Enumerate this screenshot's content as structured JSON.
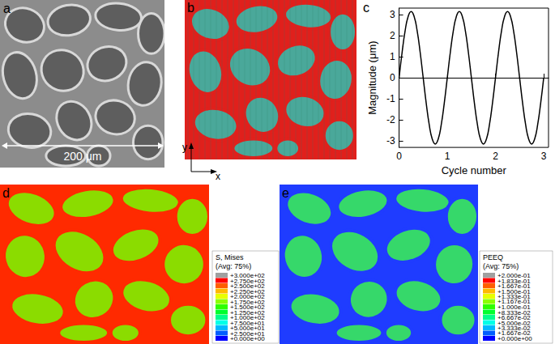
{
  "chart_data": {
    "label": "c",
    "type": "line",
    "x_label": "Cycle number",
    "y_label": "Magnitude (μm)",
    "x": [
      0,
      0.0625,
      0.125,
      0.1875,
      0.25,
      0.3125,
      0.375,
      0.4375,
      0.5,
      0.5625,
      0.625,
      0.6875,
      0.75,
      0.8125,
      0.875,
      0.9375,
      1,
      1.0625,
      1.125,
      1.1875,
      1.25,
      1.3125,
      1.375,
      1.4375,
      1.5,
      1.5625,
      1.625,
      1.6875,
      1.75,
      1.8125,
      1.875,
      1.9375,
      2,
      2.0625,
      2.125,
      2.1875,
      2.25,
      2.3125,
      2.375,
      2.4375,
      2.5,
      2.5625,
      2.625,
      2.6875,
      2.75,
      2.8125,
      2.875,
      2.9375,
      3
    ],
    "values": [
      0,
      1.2,
      2.22,
      2.9,
      3.14,
      2.9,
      2.22,
      1.2,
      0,
      -1.2,
      -2.22,
      -2.9,
      -3.14,
      -2.9,
      -2.22,
      -1.2,
      0,
      1.2,
      2.22,
      2.9,
      3.14,
      2.9,
      2.22,
      1.2,
      0,
      -1.2,
      -2.22,
      -2.9,
      -3.14,
      -2.9,
      -2.22,
      -1.2,
      0,
      1.2,
      2.22,
      2.9,
      3.14,
      2.9,
      2.22,
      1.2,
      0,
      -1.2,
      -2.22,
      -2.9,
      -3.14,
      -2.9,
      -2.22,
      -1.2,
      0
    ],
    "color": "#000000",
    "xlim": [
      0,
      3.1
    ],
    "ylim": [
      -3.3,
      3.3
    ],
    "xticks": [
      0,
      1,
      2,
      3
    ],
    "yticks": [
      -3,
      -2,
      -1,
      0,
      1,
      2,
      3
    ],
    "grid": false
  },
  "panels": {
    "a": {
      "label": "a",
      "scale_bar": "200 μm"
    },
    "b": {
      "label": "b",
      "axes": [
        "x",
        "y"
      ]
    },
    "d": {
      "label": "d",
      "legend": {
        "title": "S, Mises",
        "subtitle": "(Avg: 75%)",
        "ticks": [
          {
            "value": 300,
            "label": "+3.000e+02"
          },
          {
            "value": 275,
            "label": "+2.750e+02"
          },
          {
            "value": 250,
            "label": "+2.500e+02"
          },
          {
            "value": 225,
            "label": "+2.250e+02"
          },
          {
            "value": 200,
            "label": "+2.000e+02"
          },
          {
            "value": 175,
            "label": "+1.750e+02"
          },
          {
            "value": 150,
            "label": "+1.500e+02"
          },
          {
            "value": 125,
            "label": "+1.250e+02"
          },
          {
            "value": 100,
            "label": "+1.000e+02"
          },
          {
            "value": 75,
            "label": "+7.500e+01"
          },
          {
            "value": 50,
            "label": "+5.000e+01"
          },
          {
            "value": 25,
            "label": "+2.500e+01"
          },
          {
            "value": 0,
            "label": "+0.000e+00"
          }
        ]
      }
    },
    "e": {
      "label": "e",
      "legend": {
        "title": "PEEQ",
        "subtitle": "(Avg: 75%)",
        "ticks": [
          {
            "value": 0.2,
            "label": "+2.000e-01"
          },
          {
            "value": 0.1833,
            "label": "+1.833e-01"
          },
          {
            "value": 0.1667,
            "label": "+1.667e-01"
          },
          {
            "value": 0.15,
            "label": "+1.500e-01"
          },
          {
            "value": 0.1333,
            "label": "+1.333e-01"
          },
          {
            "value": 0.1167,
            "label": "+1.167e-01"
          },
          {
            "value": 0.1,
            "label": "+1.000e-01"
          },
          {
            "value": 0.08333,
            "label": "+8.333e-02"
          },
          {
            "value": 0.06667,
            "label": "+6.667e-02"
          },
          {
            "value": 0.05,
            "label": "+5.000e-02"
          },
          {
            "value": 0.03333,
            "label": "+3.333e-02"
          },
          {
            "value": 0.01667,
            "label": "+1.667e-02"
          },
          {
            "value": 0,
            "label": "+0.000e+00"
          }
        ]
      }
    }
  }
}
